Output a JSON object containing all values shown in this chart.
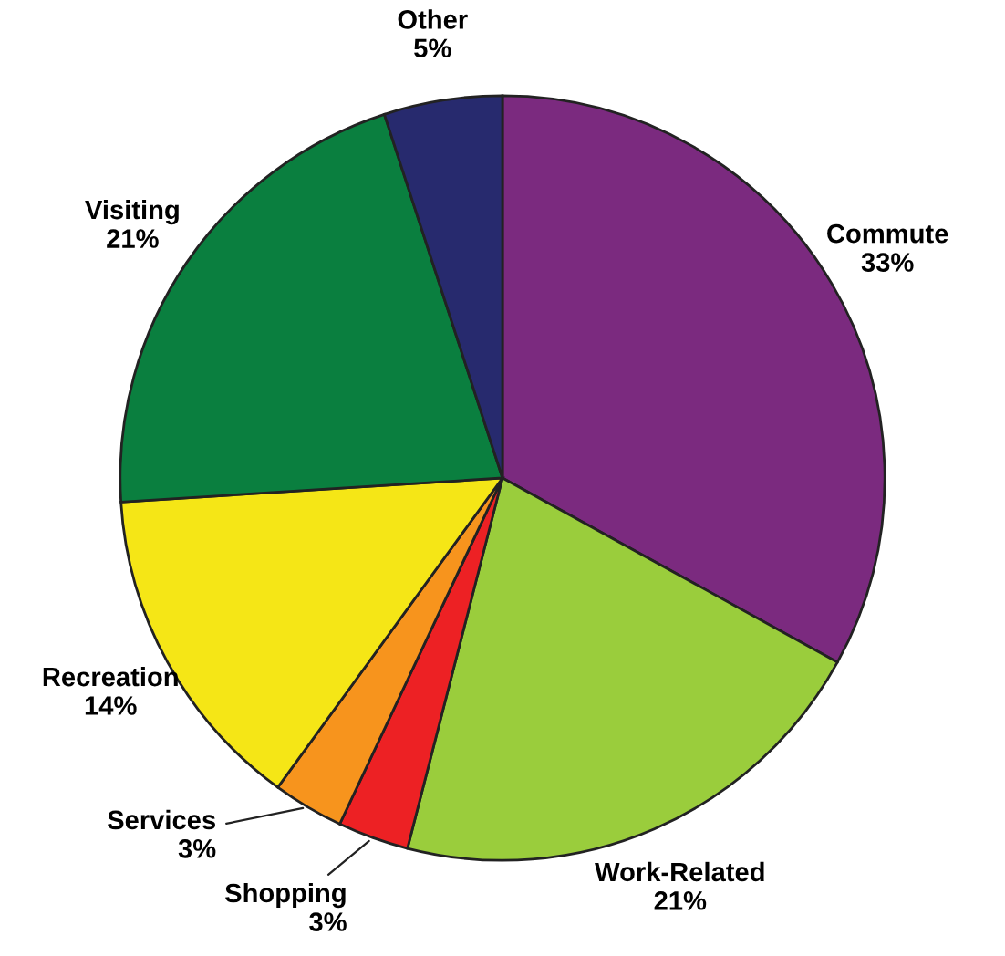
{
  "chart_data": {
    "type": "pie",
    "categories": [
      "Commute",
      "Work-Related",
      "Shopping",
      "Services",
      "Recreation",
      "Visiting",
      "Other"
    ],
    "values": [
      33,
      21,
      3,
      3,
      14,
      21,
      5
    ],
    "value_labels": [
      "33%",
      "21%",
      "3%",
      "3%",
      "14%",
      "21%",
      "5%"
    ],
    "colors": [
      "#7b2a7f",
      "#9acd3c",
      "#ed2124",
      "#f7941d",
      "#f5e616",
      "#0a7f3f",
      "#272a6e"
    ]
  }
}
